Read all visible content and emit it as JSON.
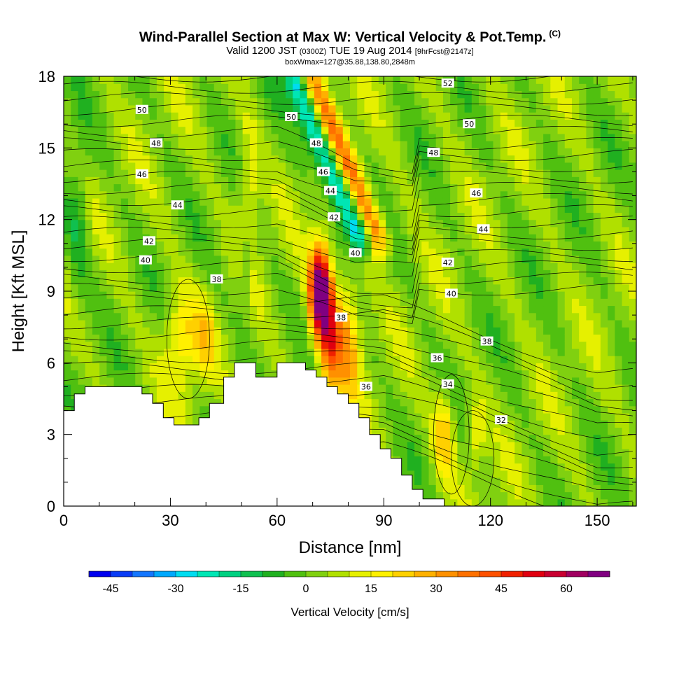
{
  "title": {
    "main": "Wind-Parallel Section at Max W: Vertical Velocity & Pot.Temp.",
    "mark": "(C)",
    "valid_prefix": "Valid 1200 JST",
    "utc": "(0300Z)",
    "date": "TUE 19 Aug 2014",
    "forecast": "[9hrFcst@2147z]",
    "box": "boxWmax=127@35.88,138.80,2848m"
  },
  "chart_data": {
    "type": "heatmap",
    "xlabel": "Distance [nm]",
    "ylabel": "Height [Kft MSL]",
    "xlim": [
      0,
      161
    ],
    "ylim": [
      0,
      18
    ],
    "x_ticks": [
      "0",
      "30",
      "60",
      "90",
      "120",
      "150"
    ],
    "y_ticks": [
      "0",
      "3",
      "6",
      "9",
      "12",
      "15",
      "18"
    ],
    "colorbar": {
      "title": "Vertical Velocity [cm/s]",
      "tick_labels": [
        "-45",
        "-30",
        "-15",
        "0",
        "15",
        "30",
        "45",
        "60"
      ],
      "min": -50,
      "max": 70,
      "step": 5,
      "colors": [
        "#0000ee",
        "#0a3cf5",
        "#1476ff",
        "#00a8ff",
        "#00dcf0",
        "#00e6b4",
        "#00d080",
        "#10c050",
        "#20b020",
        "#50c010",
        "#80d010",
        "#b0e000",
        "#e6f000",
        "#fff000",
        "#ffd000",
        "#ffb000",
        "#ff9000",
        "#ff7000",
        "#ff5000",
        "#f02000",
        "#e00010",
        "#c80030",
        "#a00060",
        "#800080"
      ]
    },
    "terrain_kft": [
      [
        0,
        4.0
      ],
      [
        3,
        4.0
      ],
      [
        3,
        4.7
      ],
      [
        6,
        4.7
      ],
      [
        6,
        5.0
      ],
      [
        22,
        5.0
      ],
      [
        22,
        4.7
      ],
      [
        25,
        4.7
      ],
      [
        25,
        4.3
      ],
      [
        28,
        4.3
      ],
      [
        28,
        3.7
      ],
      [
        31,
        3.7
      ],
      [
        31,
        3.4
      ],
      [
        38,
        3.4
      ],
      [
        38,
        3.7
      ],
      [
        41,
        3.7
      ],
      [
        41,
        4.3
      ],
      [
        45,
        4.3
      ],
      [
        45,
        5.4
      ],
      [
        48,
        5.4
      ],
      [
        48,
        6.0
      ],
      [
        54,
        6.0
      ],
      [
        54,
        5.4
      ],
      [
        60,
        5.4
      ],
      [
        60,
        6.0
      ],
      [
        68,
        6.0
      ],
      [
        68,
        5.7
      ],
      [
        71,
        5.7
      ],
      [
        71,
        5.4
      ],
      [
        74,
        5.4
      ],
      [
        74,
        5.0
      ],
      [
        77,
        5.0
      ],
      [
        77,
        4.7
      ],
      [
        80,
        4.7
      ],
      [
        80,
        4.3
      ],
      [
        83,
        4.3
      ],
      [
        83,
        3.7
      ],
      [
        86,
        3.7
      ],
      [
        86,
        3.0
      ],
      [
        89,
        3.0
      ],
      [
        89,
        2.4
      ],
      [
        92,
        2.4
      ],
      [
        92,
        2.0
      ],
      [
        95,
        2.0
      ],
      [
        95,
        1.3
      ],
      [
        98,
        1.3
      ],
      [
        98,
        0.7
      ],
      [
        101,
        0.7
      ],
      [
        101,
        0.3
      ],
      [
        107,
        0.3
      ],
      [
        107,
        0
      ],
      [
        0,
        0
      ]
    ],
    "contour_labels": [
      {
        "text": "52",
        "x": 108,
        "y": 17.7
      },
      {
        "text": "50",
        "x": 22,
        "y": 16.6
      },
      {
        "text": "50",
        "x": 64,
        "y": 16.3
      },
      {
        "text": "50",
        "x": 114,
        "y": 16.0
      },
      {
        "text": "48",
        "x": 26,
        "y": 15.2
      },
      {
        "text": "48",
        "x": 71,
        "y": 15.2
      },
      {
        "text": "48",
        "x": 104,
        "y": 14.8
      },
      {
        "text": "46",
        "x": 22,
        "y": 13.9
      },
      {
        "text": "46",
        "x": 73,
        "y": 14.0
      },
      {
        "text": "46",
        "x": 116,
        "y": 13.1
      },
      {
        "text": "44",
        "x": 32,
        "y": 12.6
      },
      {
        "text": "44",
        "x": 75,
        "y": 13.2
      },
      {
        "text": "44",
        "x": 118,
        "y": 11.6
      },
      {
        "text": "42",
        "x": 24,
        "y": 11.1
      },
      {
        "text": "42",
        "x": 76,
        "y": 12.1
      },
      {
        "text": "42",
        "x": 108,
        "y": 10.2
      },
      {
        "text": "40",
        "x": 23,
        "y": 10.3
      },
      {
        "text": "40",
        "x": 82,
        "y": 10.6
      },
      {
        "text": "40",
        "x": 109,
        "y": 8.9
      },
      {
        "text": "38",
        "x": 43,
        "y": 9.5
      },
      {
        "text": "38",
        "x": 78,
        "y": 7.9
      },
      {
        "text": "38",
        "x": 119,
        "y": 6.9
      },
      {
        "text": "36",
        "x": 105,
        "y": 6.2
      },
      {
        "text": "36",
        "x": 85,
        "y": 5.0
      },
      {
        "text": "34",
        "x": 108,
        "y": 5.1
      },
      {
        "text": "32",
        "x": 123,
        "y": 3.6
      }
    ]
  }
}
